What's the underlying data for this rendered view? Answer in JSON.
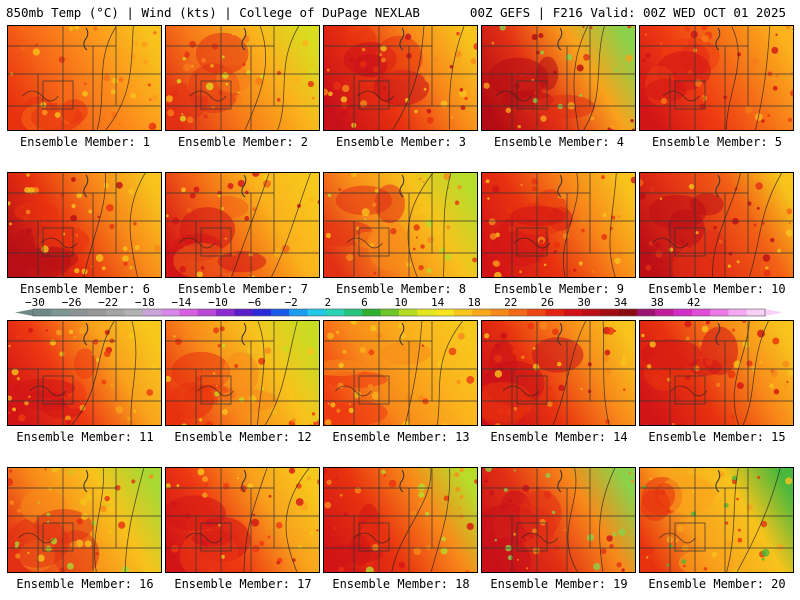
{
  "header": {
    "left": "850mb Temp (°C) | Wind (kts) | College of DuPage NEXLAB",
    "right": "00Z GEFS | F216 Valid: 00Z WED OCT 01 2025"
  },
  "members": [
    {
      "label": "Ensemble Member: 1",
      "palette": [
        "#e8320f",
        "#f76a18",
        "#fd9a1c",
        "#f7c31c"
      ]
    },
    {
      "label": "Ensemble Member: 2",
      "palette": [
        "#e23014",
        "#f77a18",
        "#fbb21c",
        "#d9dc1f"
      ]
    },
    {
      "label": "Ensemble Member: 3",
      "palette": [
        "#c8101a",
        "#e8300f",
        "#f88a1a",
        "#f7c31c"
      ]
    },
    {
      "label": "Ensemble Member: 4",
      "palette": [
        "#b40c14",
        "#e23014",
        "#f9a21c",
        "#8bd24a"
      ]
    },
    {
      "label": "Ensemble Member: 5",
      "palette": [
        "#d21416",
        "#ee3a12",
        "#f77a18",
        "#fbb21c"
      ]
    },
    {
      "label": "Ensemble Member: 6",
      "palette": [
        "#b80e16",
        "#e8320f",
        "#f88a1a",
        "#f7c31c"
      ]
    },
    {
      "label": "Ensemble Member: 7",
      "palette": [
        "#d21416",
        "#f26015",
        "#fbb21c",
        "#f7c81c"
      ]
    },
    {
      "label": "Ensemble Member: 8",
      "palette": [
        "#e23014",
        "#f88a1a",
        "#f7c31c",
        "#b8dc2a"
      ]
    },
    {
      "label": "Ensemble Member: 9",
      "palette": [
        "#d21416",
        "#e8320f",
        "#f88a1a",
        "#f7c31c"
      ]
    },
    {
      "label": "Ensemble Member: 10",
      "palette": [
        "#bc0e16",
        "#e23014",
        "#f26015",
        "#f7c31c"
      ]
    },
    {
      "label": "Ensemble Member: 11",
      "palette": [
        "#d21416",
        "#ee3a12",
        "#f9a21c",
        "#f7c81c"
      ]
    },
    {
      "label": "Ensemble Member: 12",
      "palette": [
        "#e8320f",
        "#f88a1a",
        "#f7c31c",
        "#c8dc22"
      ]
    },
    {
      "label": "Ensemble Member: 13",
      "palette": [
        "#ee3a12",
        "#f88a1a",
        "#fbb21c",
        "#f7c81c"
      ]
    },
    {
      "label": "Ensemble Member: 14",
      "palette": [
        "#c8101a",
        "#e8320f",
        "#f88a1a",
        "#f7c31c"
      ]
    },
    {
      "label": "Ensemble Member: 15",
      "palette": [
        "#d21416",
        "#e8320f",
        "#f88a1a",
        "#f7c31c"
      ]
    },
    {
      "label": "Ensemble Member: 16",
      "palette": [
        "#e23014",
        "#f88a1a",
        "#f7c31c",
        "#a8d834"
      ]
    },
    {
      "label": "Ensemble Member: 17",
      "palette": [
        "#d21416",
        "#ee3a12",
        "#f9a21c",
        "#f7c81c"
      ]
    },
    {
      "label": "Ensemble Member: 18",
      "palette": [
        "#d21416",
        "#e8320f",
        "#f88a1a",
        "#b8dc2a"
      ]
    },
    {
      "label": "Ensemble Member: 19",
      "palette": [
        "#c8101a",
        "#e23014",
        "#f88a1a",
        "#8bd24a"
      ]
    },
    {
      "label": "Ensemble Member: 20",
      "palette": [
        "#e8320f",
        "#f9a21c",
        "#f7c31c",
        "#49b83c"
      ]
    }
  ],
  "colorbar": {
    "labels": [
      "−30",
      "−26",
      "−22",
      "−18",
      "−14",
      "−10",
      "−6",
      "−2",
      "2",
      "6",
      "10",
      "14",
      "18",
      "22",
      "26",
      "30",
      "34",
      "38",
      "42"
    ],
    "colors": [
      "#6f8a86",
      "#7d9692",
      "#8a9494",
      "#979797",
      "#a4a4a4",
      "#b2b2b2",
      "#c8a4d8",
      "#d889e8",
      "#d660e0",
      "#b847d4",
      "#8a2ad0",
      "#5a1ec8",
      "#2b2ad8",
      "#1a5ae8",
      "#1a9cf0",
      "#22c8e6",
      "#2ad2b4",
      "#25c47c",
      "#2fb030",
      "#6fc428",
      "#b6dc22",
      "#e4e620",
      "#f7e41c",
      "#f6c61c",
      "#f9a81c",
      "#f7881a",
      "#f26a16",
      "#ee4612",
      "#e42412",
      "#d2101a",
      "#bc0e16",
      "#a20c12",
      "#8a0c10",
      "#9a1470",
      "#c21c9a",
      "#d02ec4",
      "#e04cd8",
      "#ec7ae6",
      "#f4a8ef",
      "#f8d0f6"
    ]
  }
}
